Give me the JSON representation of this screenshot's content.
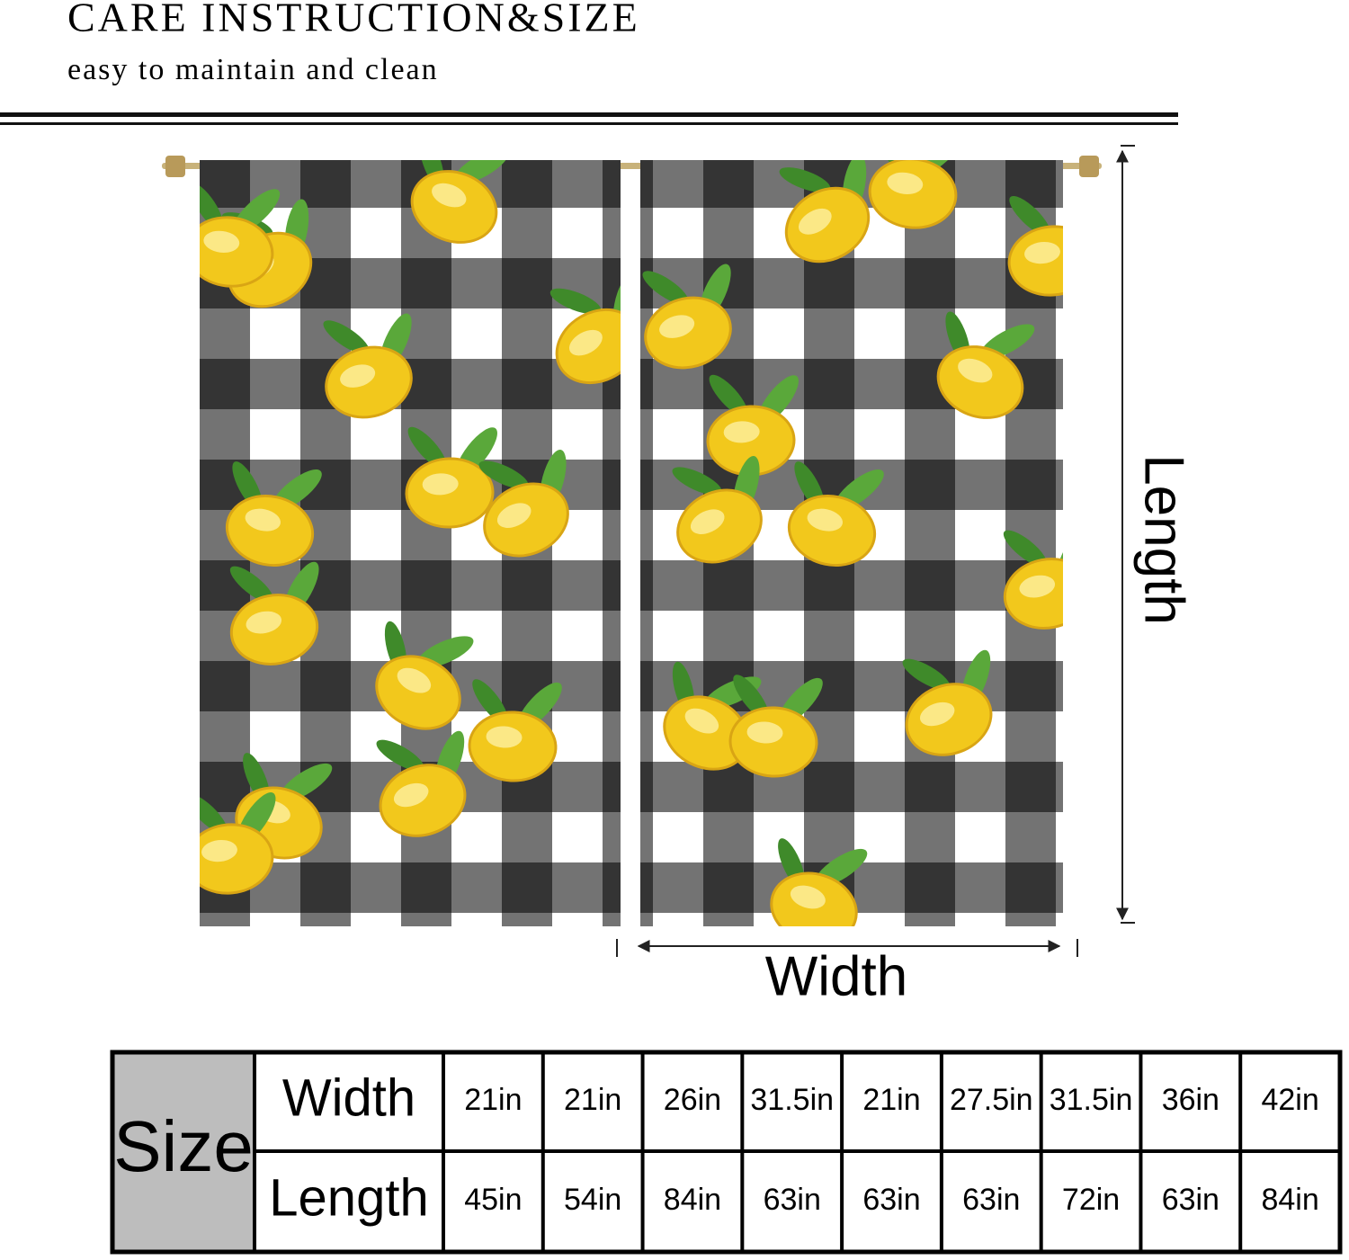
{
  "header": {
    "title": "CARE INSTRUCTION&SIZE",
    "subtitle": "easy to maintain and clean"
  },
  "diagram": {
    "length_label": "Length",
    "width_label": "Width"
  },
  "table": {
    "label": "Size",
    "rows": [
      {
        "header": "Width",
        "values": [
          "21in",
          "21in",
          "26in",
          "31.5in",
          "21in",
          "27.5in",
          "31.5in",
          "36in",
          "42in"
        ]
      },
      {
        "header": "Length",
        "values": [
          "45in",
          "54in",
          "84in",
          "63in",
          "63in",
          "63in",
          "72in",
          "63in",
          "84in"
        ]
      }
    ]
  }
}
